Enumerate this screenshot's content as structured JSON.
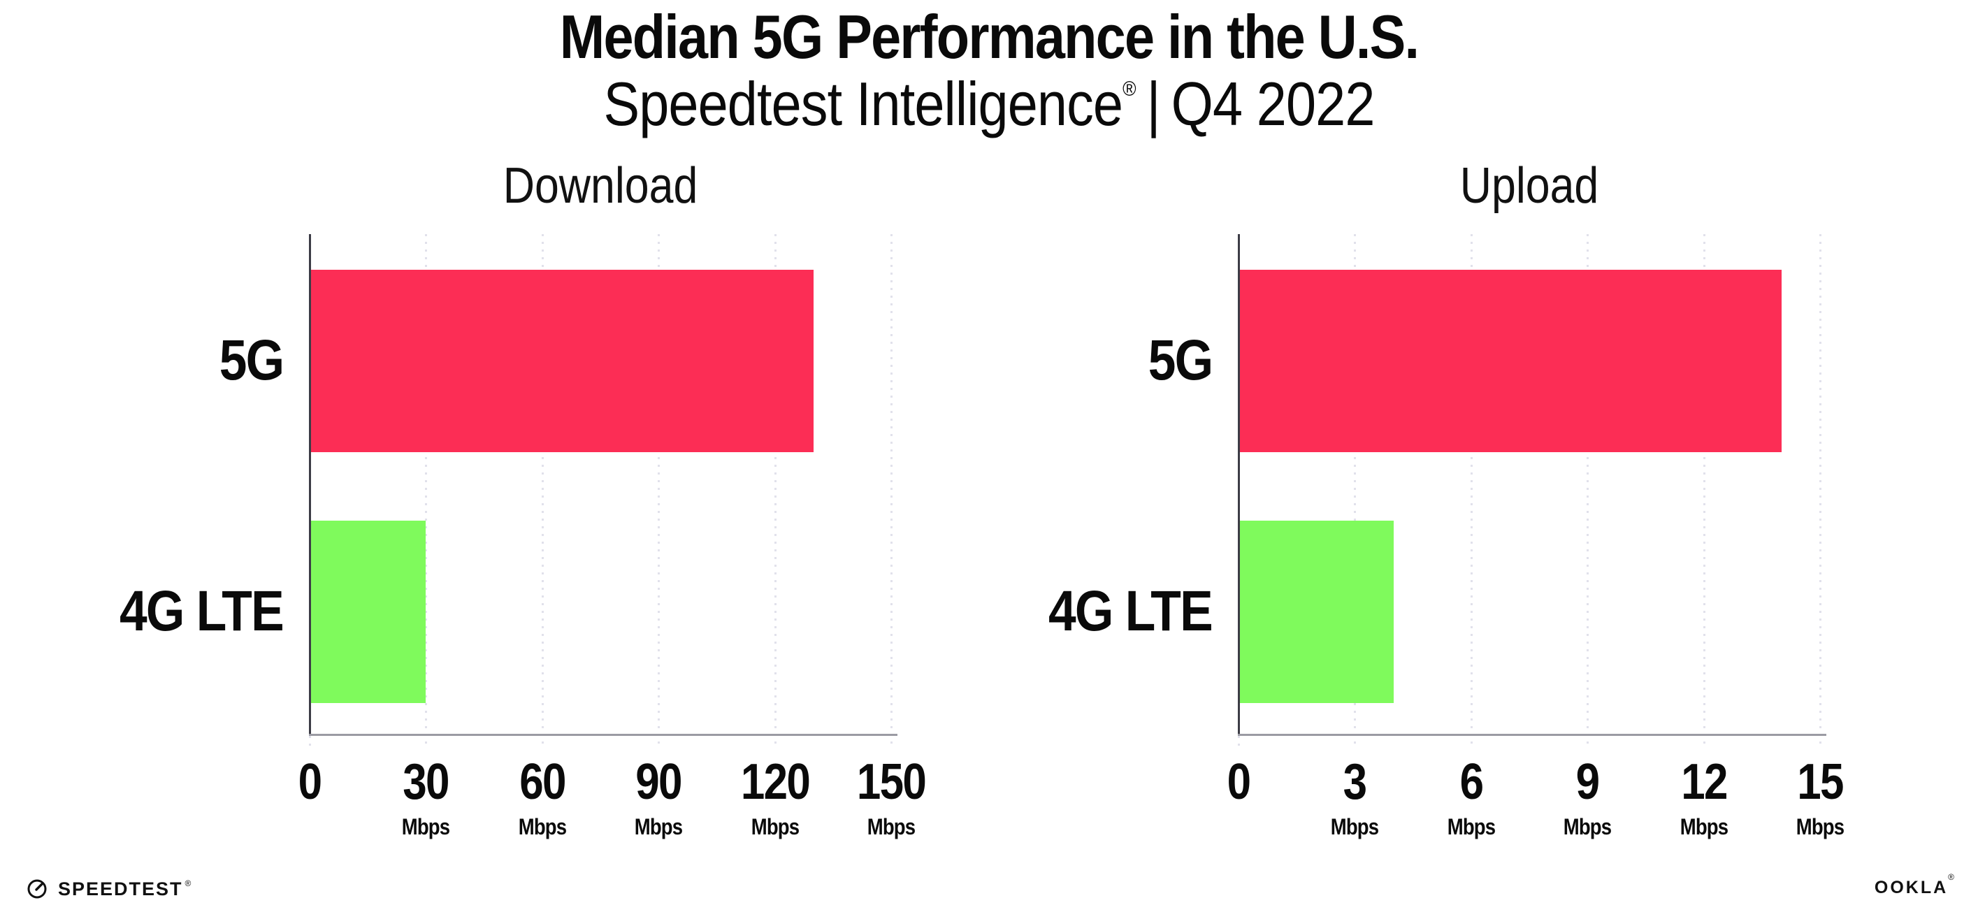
{
  "header": {
    "title": "Median 5G Performance in the U.S.",
    "subtitle_brand": "Speedtest Intelligence",
    "subtitle_reg": "®",
    "subtitle_sep": "|",
    "subtitle_period": "Q4 2022"
  },
  "colors": {
    "bar_5g": "#FC2D55",
    "bar_4g_lte": "#7FFA5C",
    "y_axis": "#3C3C46",
    "x_axis": "#9B9BA3",
    "gridline": "#E1E1EB",
    "text": "#0A0A0A",
    "background": "#FFFFFF"
  },
  "chart_data": [
    {
      "type": "bar",
      "orientation": "horizontal",
      "title": "Download",
      "categories": [
        "5G",
        "4G LTE"
      ],
      "values": [
        130,
        30
      ],
      "unit": "Mbps",
      "xlim": [
        0,
        150
      ],
      "xticks": [
        0,
        30,
        60,
        90,
        120,
        150
      ],
      "grid": "vertical-dotted",
      "legend": "none",
      "bar_colors": [
        "#FC2D55",
        "#7FFA5C"
      ]
    },
    {
      "type": "bar",
      "orientation": "horizontal",
      "title": "Upload",
      "categories": [
        "5G",
        "4G LTE"
      ],
      "values": [
        14,
        4
      ],
      "unit": "Mbps",
      "xlim": [
        0,
        15
      ],
      "xticks": [
        0,
        3,
        6,
        9,
        12,
        15
      ],
      "grid": "vertical-dotted",
      "legend": "none",
      "bar_colors": [
        "#FC2D55",
        "#7FFA5C"
      ]
    }
  ],
  "footer": {
    "speedtest_label": "SPEEDTEST",
    "speedtest_reg": "®",
    "ookla_label": "OOKLA",
    "ookla_reg": "®"
  }
}
